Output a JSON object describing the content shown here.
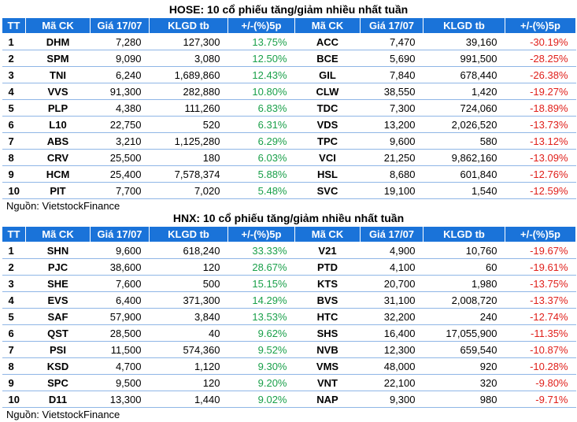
{
  "tables": [
    {
      "title": "HOSE: 10 cổ phiếu tăng/giảm nhiều nhất tuần",
      "headers": [
        "TT",
        "Mã CK",
        "Giá 17/07",
        "KLGD tb",
        "+/-(%)5p",
        "Mã CK",
        "Giá 17/07",
        "KLGD tb",
        "+/-(%)5p"
      ],
      "rows": [
        [
          "1",
          "DHM",
          "7,280",
          "127,300",
          "13.75%",
          "ACC",
          "7,470",
          "39,160",
          "-30.19%"
        ],
        [
          "2",
          "SPM",
          "9,090",
          "3,080",
          "12.50%",
          "BCE",
          "5,690",
          "991,500",
          "-28.25%"
        ],
        [
          "3",
          "TNI",
          "6,240",
          "1,689,860",
          "12.43%",
          "GIL",
          "7,840",
          "678,440",
          "-26.38%"
        ],
        [
          "4",
          "VVS",
          "91,300",
          "282,880",
          "10.80%",
          "CLW",
          "38,550",
          "1,420",
          "-19.27%"
        ],
        [
          "5",
          "PLP",
          "4,380",
          "111,260",
          "6.83%",
          "TDC",
          "7,300",
          "724,060",
          "-18.89%"
        ],
        [
          "6",
          "L10",
          "22,750",
          "520",
          "6.31%",
          "VDS",
          "13,200",
          "2,026,520",
          "-13.73%"
        ],
        [
          "7",
          "ABS",
          "3,210",
          "1,125,280",
          "6.29%",
          "TPC",
          "9,600",
          "580",
          "-13.12%"
        ],
        [
          "8",
          "CRV",
          "25,500",
          "180",
          "6.03%",
          "VCI",
          "21,250",
          "9,862,160",
          "-13.09%"
        ],
        [
          "9",
          "HCM",
          "25,400",
          "7,578,374",
          "5.88%",
          "HSL",
          "8,680",
          "601,840",
          "-12.76%"
        ],
        [
          "10",
          "PIT",
          "7,700",
          "7,020",
          "5.48%",
          "SVC",
          "19,100",
          "1,540",
          "-12.59%"
        ]
      ],
      "source": "Nguồn: VietstockFinance"
    },
    {
      "title": "HNX: 10 cổ phiếu tăng/giảm nhiều nhất tuần",
      "headers": [
        "TT",
        "Mã CK",
        "Giá 17/07",
        "KLGD tb",
        "+/-(%)5p",
        "Mã CK",
        "Giá 17/07",
        "KLGD tb",
        "+/-(%)5p"
      ],
      "rows": [
        [
          "1",
          "SHN",
          "9,600",
          "618,240",
          "33.33%",
          "V21",
          "4,900",
          "10,760",
          "-19.67%"
        ],
        [
          "2",
          "PJC",
          "38,600",
          "120",
          "28.67%",
          "PTD",
          "4,100",
          "60",
          "-19.61%"
        ],
        [
          "3",
          "SHE",
          "7,600",
          "500",
          "15.15%",
          "KTS",
          "20,700",
          "1,980",
          "-13.75%"
        ],
        [
          "4",
          "EVS",
          "6,400",
          "371,300",
          "14.29%",
          "BVS",
          "31,100",
          "2,008,720",
          "-13.37%"
        ],
        [
          "5",
          "SAF",
          "57,900",
          "3,840",
          "13.53%",
          "HTC",
          "32,200",
          "240",
          "-12.74%"
        ],
        [
          "6",
          "QST",
          "28,500",
          "40",
          "9.62%",
          "SHS",
          "16,400",
          "17,055,900",
          "-11.35%"
        ],
        [
          "7",
          "PSI",
          "11,500",
          "574,360",
          "9.52%",
          "NVB",
          "12,300",
          "659,540",
          "-10.87%"
        ],
        [
          "8",
          "KSD",
          "4,700",
          "1,120",
          "9.30%",
          "VMS",
          "48,000",
          "920",
          "-10.28%"
        ],
        [
          "9",
          "SPC",
          "9,500",
          "120",
          "9.20%",
          "VNT",
          "22,100",
          "320",
          "-9.80%"
        ],
        [
          "10",
          "D11",
          "13,300",
          "1,440",
          "9.02%",
          "NAP",
          "9,300",
          "980",
          "-9.71%"
        ]
      ],
      "source": "Nguồn: VietstockFinance"
    }
  ]
}
